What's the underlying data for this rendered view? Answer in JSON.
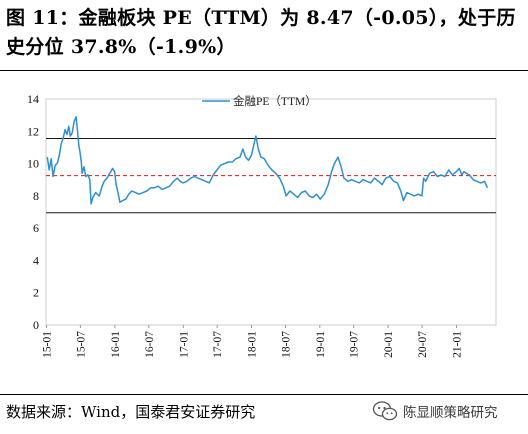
{
  "header": {
    "title": "图 11：金融板块 PE（TTM）为 8.47（-0.05），处于历史分位 37.8%（-1.9%）"
  },
  "footer": {
    "source": "数据来源：Wind，国泰君安证券研究",
    "watermark_text": "陈显顺策略研究",
    "watermark_icon": "wechat-icon"
  },
  "colors": {
    "series_line": "#2e8fd1",
    "upper_band": "#1a1a1a",
    "mean_line": "#e0141e",
    "lower_band": "#1a1a1a",
    "plot_border": "#cfcfcf"
  },
  "chart_data": {
    "type": "line",
    "title": "",
    "legend": {
      "position": "top-center",
      "entries": [
        "金融PE（TTM）"
      ]
    },
    "x_tick_labels": [
      "15-01",
      "15-07",
      "16-01",
      "16-07",
      "17-01",
      "17-07",
      "18-01",
      "18-07",
      "19-01",
      "19-07",
      "20-01",
      "20-07",
      "21-01"
    ],
    "y_tick_labels": [
      "0",
      "2",
      "4",
      "6",
      "8",
      "10",
      "12",
      "14"
    ],
    "ylim": [
      0,
      14
    ],
    "grid": false,
    "xlabel": "",
    "ylabel": "",
    "reference_lines": [
      {
        "role": "upper",
        "value": 11.55,
        "style": "solid"
      },
      {
        "role": "mean",
        "value": 9.25,
        "style": "dashed"
      },
      {
        "role": "lower",
        "value": 6.95,
        "style": "solid"
      }
    ],
    "series": [
      {
        "name": "金融PE（TTM）",
        "points": [
          [
            "2015-01-05",
            10.4
          ],
          [
            "2015-01-15",
            9.6
          ],
          [
            "2015-01-26",
            10.3
          ],
          [
            "2015-02-05",
            9.2
          ],
          [
            "2015-02-16",
            9.9
          ],
          [
            "2015-02-27",
            10.0
          ],
          [
            "2015-03-10",
            10.5
          ],
          [
            "2015-03-20",
            11.2
          ],
          [
            "2015-03-31",
            11.6
          ],
          [
            "2015-04-10",
            12.1
          ],
          [
            "2015-04-20",
            11.8
          ],
          [
            "2015-04-30",
            12.3
          ],
          [
            "2015-05-08",
            11.7
          ],
          [
            "2015-05-18",
            11.9
          ],
          [
            "2015-05-28",
            12.6
          ],
          [
            "2015-06-08",
            12.9
          ],
          [
            "2015-06-15",
            12.1
          ],
          [
            "2015-06-22",
            11.2
          ],
          [
            "2015-06-29",
            10.7
          ],
          [
            "2015-07-06",
            10.1
          ],
          [
            "2015-07-10",
            9.4
          ],
          [
            "2015-07-20",
            9.8
          ],
          [
            "2015-07-30",
            9.2
          ],
          [
            "2015-08-10",
            9.3
          ],
          [
            "2015-08-20",
            9.0
          ],
          [
            "2015-08-27",
            7.5
          ],
          [
            "2015-09-05",
            7.9
          ],
          [
            "2015-09-20",
            8.2
          ],
          [
            "2015-10-10",
            8.0
          ],
          [
            "2015-10-25",
            8.6
          ],
          [
            "2015-11-05",
            8.9
          ],
          [
            "2015-11-20",
            9.1
          ],
          [
            "2015-12-05",
            9.4
          ],
          [
            "2015-12-20",
            9.7
          ],
          [
            "2015-12-31",
            9.5
          ],
          [
            "2016-01-08",
            8.7
          ],
          [
            "2016-01-18",
            8.2
          ],
          [
            "2016-01-28",
            7.6
          ],
          [
            "2016-02-10",
            7.7
          ],
          [
            "2016-02-29",
            7.8
          ],
          [
            "2016-03-15",
            8.1
          ],
          [
            "2016-04-01",
            8.3
          ],
          [
            "2016-04-20",
            8.2
          ],
          [
            "2016-05-10",
            8.1
          ],
          [
            "2016-05-31",
            8.2
          ],
          [
            "2016-06-20",
            8.3
          ],
          [
            "2016-07-10",
            8.5
          ],
          [
            "2016-07-31",
            8.5
          ],
          [
            "2016-08-20",
            8.6
          ],
          [
            "2016-09-10",
            8.4
          ],
          [
            "2016-09-30",
            8.5
          ],
          [
            "2016-10-20",
            8.6
          ],
          [
            "2016-11-10",
            8.9
          ],
          [
            "2016-11-30",
            9.1
          ],
          [
            "2016-12-15",
            8.9
          ],
          [
            "2016-12-31",
            8.8
          ],
          [
            "2017-01-20",
            8.9
          ],
          [
            "2017-02-10",
            9.1
          ],
          [
            "2017-03-01",
            9.2
          ],
          [
            "2017-03-20",
            9.1
          ],
          [
            "2017-04-10",
            9.0
          ],
          [
            "2017-05-01",
            8.9
          ],
          [
            "2017-05-20",
            8.8
          ],
          [
            "2017-06-10",
            9.3
          ],
          [
            "2017-06-30",
            9.6
          ],
          [
            "2017-07-20",
            9.9
          ],
          [
            "2017-08-10",
            10.0
          ],
          [
            "2017-08-30",
            10.1
          ],
          [
            "2017-09-20",
            10.1
          ],
          [
            "2017-10-10",
            10.3
          ],
          [
            "2017-10-31",
            10.4
          ],
          [
            "2017-11-15",
            10.9
          ],
          [
            "2017-11-30",
            10.4
          ],
          [
            "2017-12-15",
            10.2
          ],
          [
            "2017-12-31",
            10.5
          ],
          [
            "2018-01-10",
            11.0
          ],
          [
            "2018-01-24",
            11.7
          ],
          [
            "2018-02-06",
            10.9
          ],
          [
            "2018-02-20",
            10.4
          ],
          [
            "2018-03-10",
            10.3
          ],
          [
            "2018-03-30",
            9.9
          ],
          [
            "2018-04-20",
            9.6
          ],
          [
            "2018-05-10",
            9.4
          ],
          [
            "2018-05-31",
            9.1
          ],
          [
            "2018-06-20",
            8.6
          ],
          [
            "2018-07-05",
            8.0
          ],
          [
            "2018-07-25",
            8.3
          ],
          [
            "2018-08-15",
            8.1
          ],
          [
            "2018-09-05",
            7.9
          ],
          [
            "2018-09-25",
            8.2
          ],
          [
            "2018-10-15",
            8.3
          ],
          [
            "2018-11-05",
            8.0
          ],
          [
            "2018-11-25",
            7.9
          ],
          [
            "2018-12-15",
            8.1
          ],
          [
            "2019-01-03",
            7.8
          ],
          [
            "2019-01-25",
            8.1
          ],
          [
            "2019-02-15",
            8.7
          ],
          [
            "2019-03-05",
            9.5
          ],
          [
            "2019-03-20",
            10.0
          ],
          [
            "2019-04-08",
            10.4
          ],
          [
            "2019-04-25",
            9.8
          ],
          [
            "2019-05-10",
            9.1
          ],
          [
            "2019-05-31",
            8.9
          ],
          [
            "2019-06-20",
            9.0
          ],
          [
            "2019-07-10",
            8.9
          ],
          [
            "2019-07-31",
            8.8
          ],
          [
            "2019-08-20",
            9.0
          ],
          [
            "2019-09-10",
            8.9
          ],
          [
            "2019-09-30",
            8.8
          ],
          [
            "2019-10-20",
            9.1
          ],
          [
            "2019-11-10",
            8.9
          ],
          [
            "2019-11-30",
            8.7
          ],
          [
            "2019-12-20",
            9.1
          ],
          [
            "2020-01-10",
            9.2
          ],
          [
            "2020-01-31",
            8.9
          ],
          [
            "2020-02-20",
            8.8
          ],
          [
            "2020-03-09",
            8.3
          ],
          [
            "2020-03-23",
            7.7
          ],
          [
            "2020-04-10",
            8.2
          ],
          [
            "2020-04-30",
            8.1
          ],
          [
            "2020-05-20",
            8.0
          ],
          [
            "2020-06-10",
            8.1
          ],
          [
            "2020-06-30",
            8.0
          ],
          [
            "2020-07-09",
            9.1
          ],
          [
            "2020-07-20",
            8.9
          ],
          [
            "2020-08-10",
            9.4
          ],
          [
            "2020-08-31",
            9.5
          ],
          [
            "2020-09-20",
            9.2
          ],
          [
            "2020-10-10",
            9.3
          ],
          [
            "2020-10-31",
            9.2
          ],
          [
            "2020-11-20",
            9.6
          ],
          [
            "2020-12-10",
            9.3
          ],
          [
            "2020-12-31",
            9.5
          ],
          [
            "2021-01-15",
            9.7
          ],
          [
            "2021-01-29",
            9.3
          ],
          [
            "2021-02-10",
            9.5
          ],
          [
            "2021-02-22",
            9.4
          ],
          [
            "2021-03-10",
            9.3
          ],
          [
            "2021-03-31",
            9.0
          ],
          [
            "2021-04-20",
            8.9
          ],
          [
            "2021-05-10",
            8.8
          ],
          [
            "2021-05-31",
            8.9
          ],
          [
            "2021-06-15",
            8.5
          ]
        ]
      }
    ]
  }
}
